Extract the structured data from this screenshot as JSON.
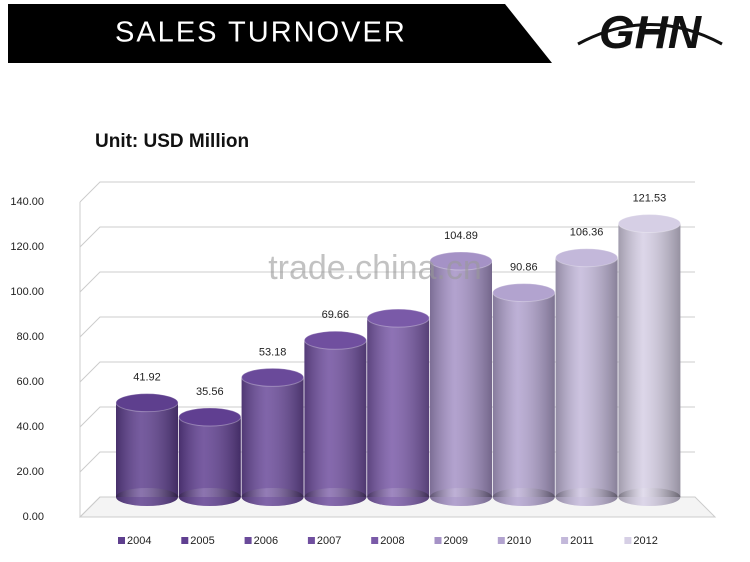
{
  "header": {
    "title": "SALES TURNOVER",
    "logo": "GHN"
  },
  "watermark": "trade.china.cn",
  "chart_data": {
    "type": "bar",
    "subtitle": "Unit: USD Million",
    "categories": [
      "2004",
      "2005",
      "2006",
      "2007",
      "2008",
      "2009",
      "2010",
      "2011",
      "2012"
    ],
    "values": [
      41.92,
      35.56,
      53.18,
      69.66,
      79.5,
      104.89,
      90.86,
      106.36,
      121.53
    ],
    "value_labels": [
      "41.92",
      "35.56",
      "53.18",
      "69.66",
      null,
      "104.89",
      "90.86",
      "106.36",
      "121.53"
    ],
    "colors": [
      "#5e3f8e",
      "#603f91",
      "#6a4a9a",
      "#704f9f",
      "#7a5aa8",
      "#a592c6",
      "#b2a3cf",
      "#c3b8da",
      "#d6cfe5"
    ],
    "ylim": [
      0,
      140
    ],
    "yticks": [
      {
        "value": 0,
        "label": "0.00"
      },
      {
        "value": 20,
        "label": "20.00"
      },
      {
        "value": 40,
        "label": "40.00"
      },
      {
        "value": 60,
        "label": "60.00"
      },
      {
        "value": 80,
        "label": "80.00"
      },
      {
        "value": 100,
        "label": "100.00"
      },
      {
        "value": 120,
        "label": "120.00"
      },
      {
        "value": 140,
        "label": "140.00"
      }
    ],
    "grid": true,
    "legend": "bottom"
  }
}
